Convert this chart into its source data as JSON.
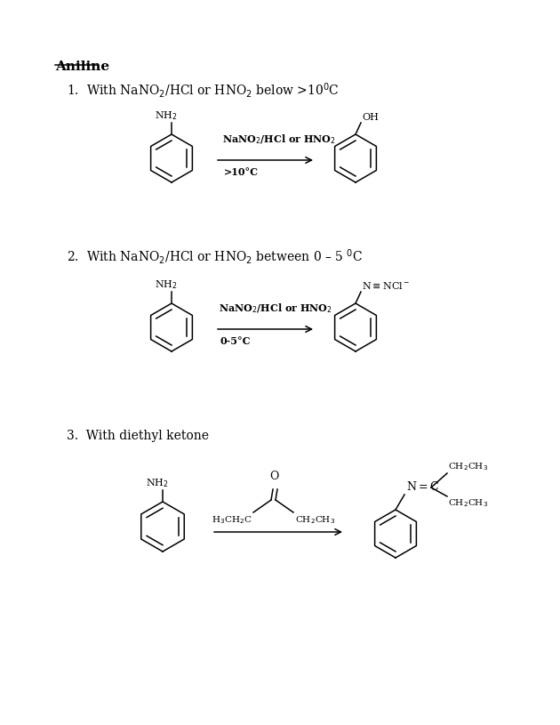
{
  "bg_color": "#ffffff",
  "title": "Aniline",
  "r1_desc": "1.  With NaNO$_2$/HCl or HNO$_2$ below >10$^0$C",
  "r2_desc": "2.  With NaNO$_2$/HCl or HNO$_2$ between 0 – 5 $^0$C",
  "r3_desc": "3.  With diethyl ketone",
  "r1_reagent1": "NaNO$_2$/HCl or HNO$_2$",
  "r1_reagent2": ">10°C",
  "r2_reagent1": "NaNO$_2$/HCl or HNO$_2$",
  "r2_reagent2": "0-5°C",
  "lw": 1.1
}
